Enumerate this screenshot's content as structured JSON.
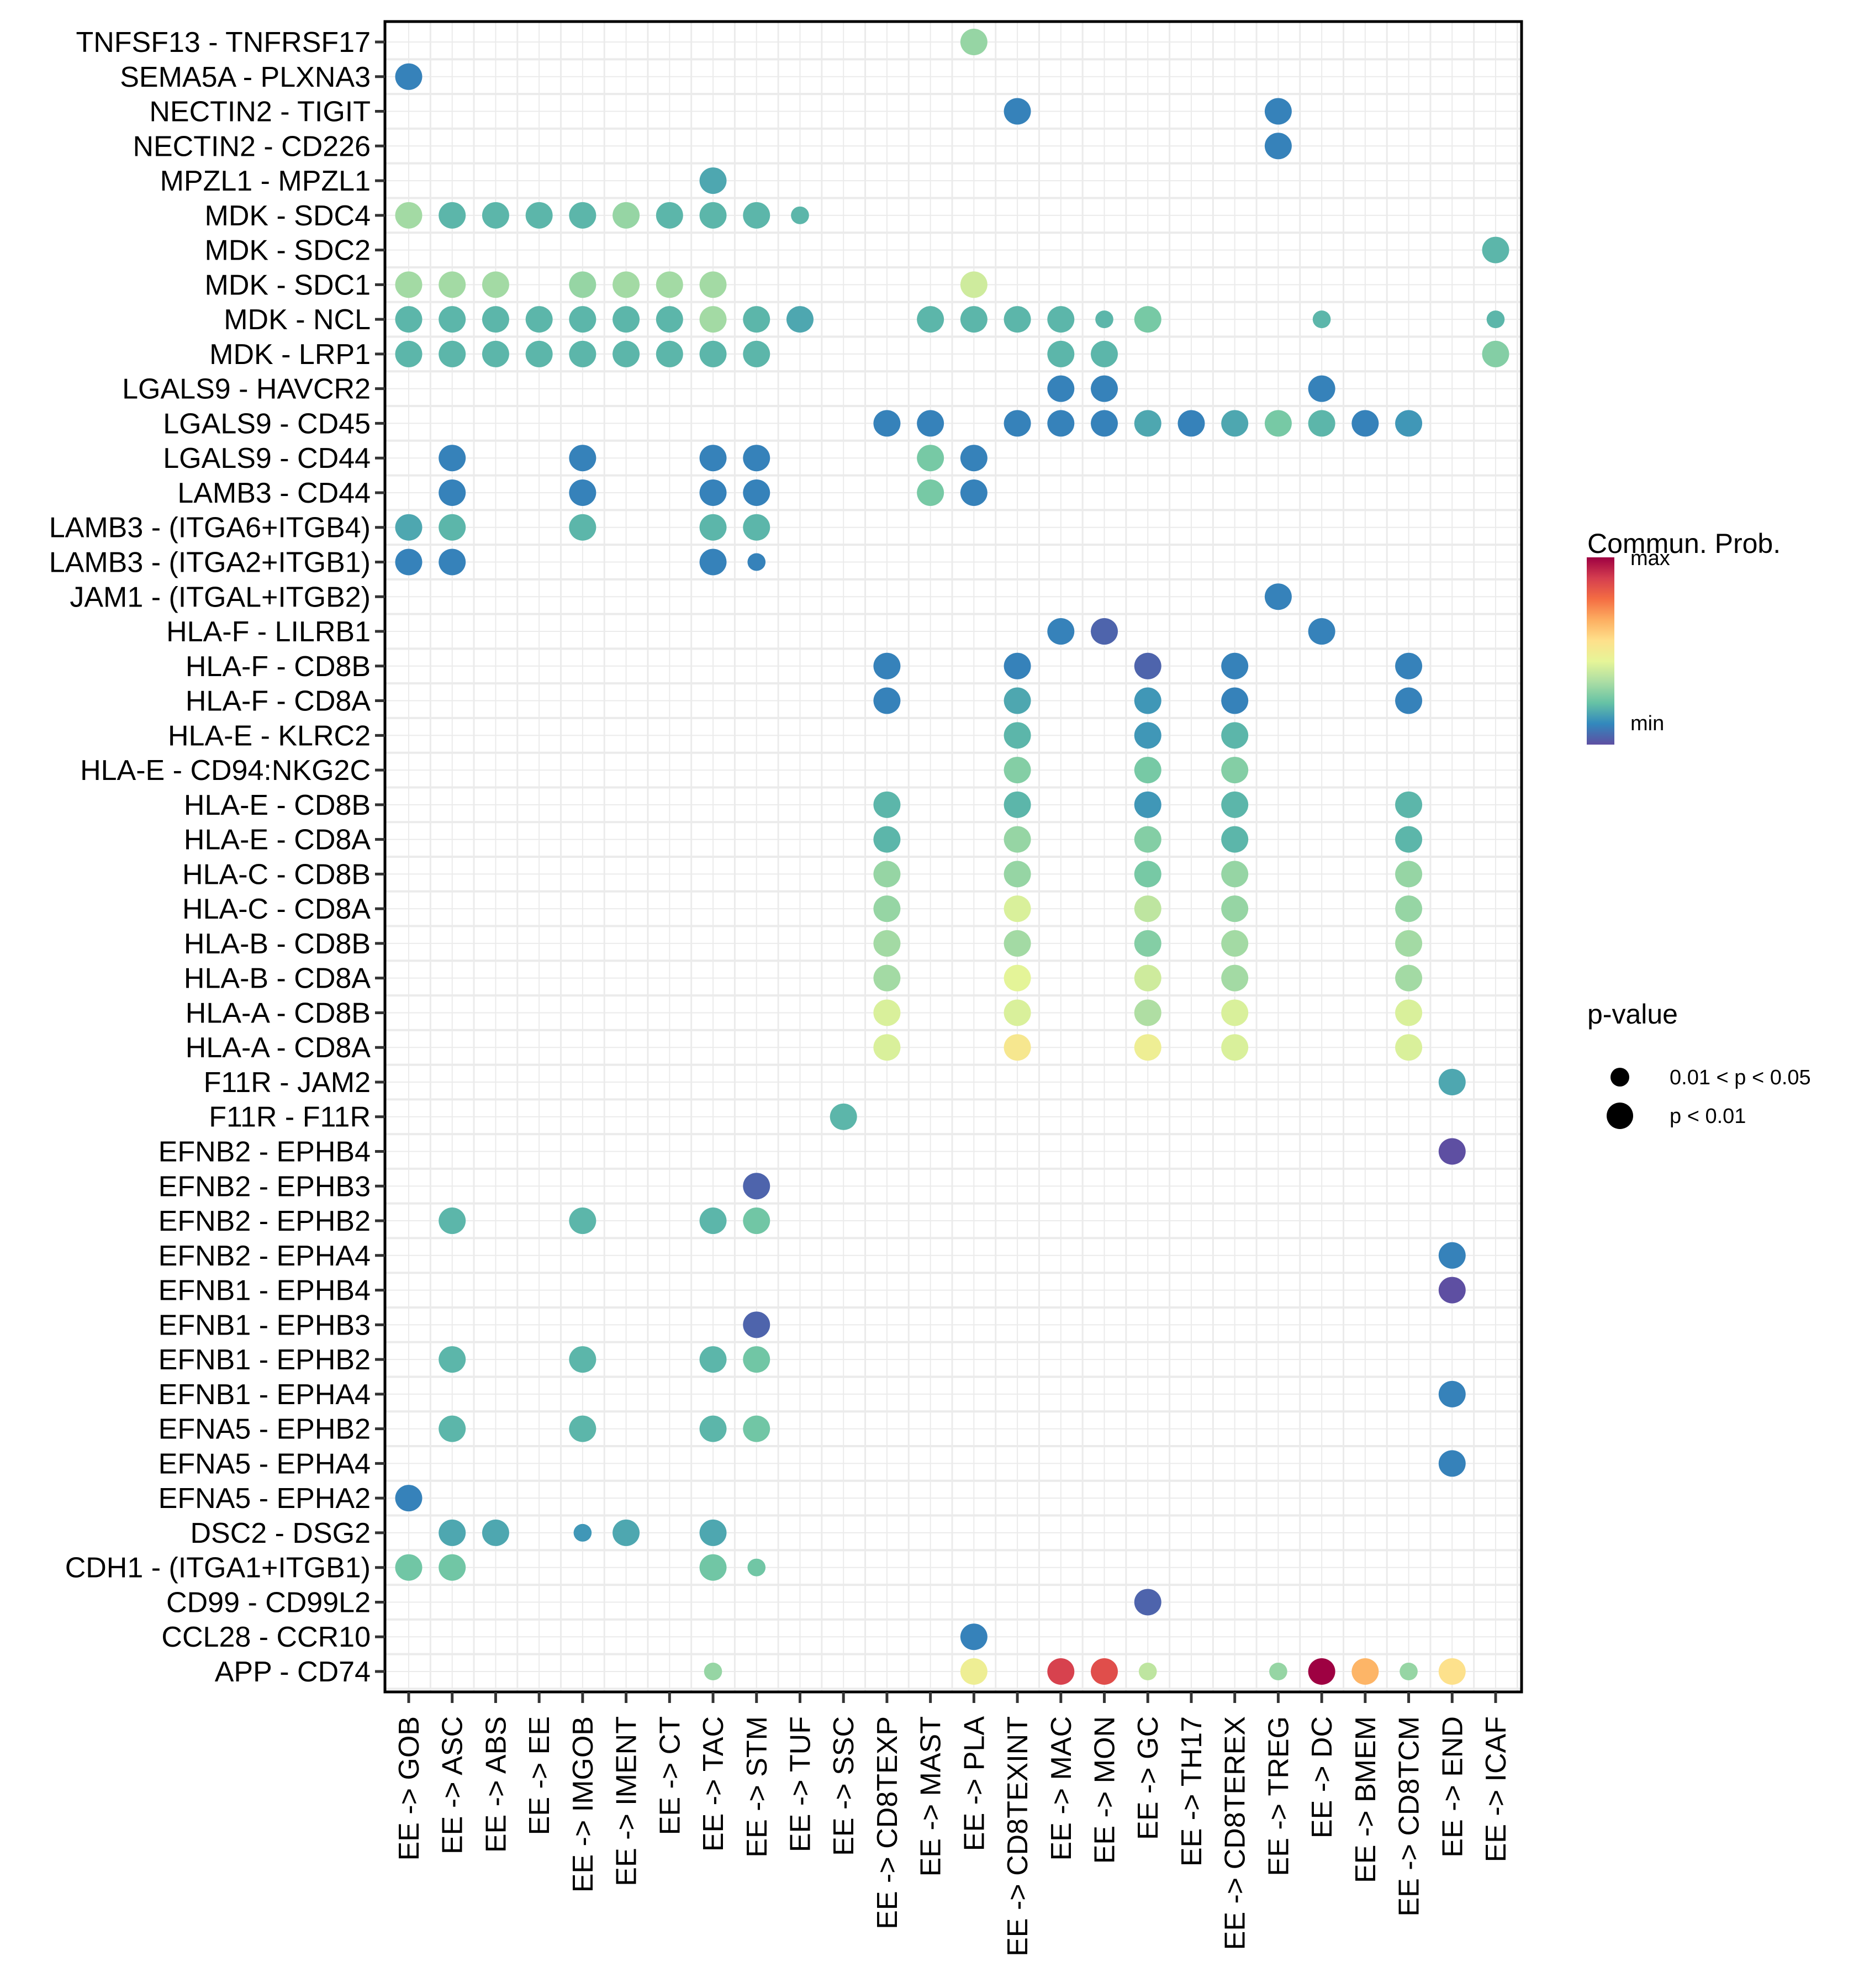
{
  "chart_data": {
    "type": "scatter",
    "subtype": "dot-matrix (bubble)",
    "title": "",
    "xlabel": "",
    "ylabel": "",
    "grid": true,
    "legend_placement": "right",
    "x_categories": [
      "EE -> GOB",
      "EE -> ASC",
      "EE -> ABS",
      "EE -> EE",
      "EE -> IMGOB",
      "EE -> IMENT",
      "EE -> CT",
      "EE -> TAC",
      "EE -> STM",
      "EE -> TUF",
      "EE -> SSC",
      "EE -> CD8TEXP",
      "EE -> MAST",
      "EE -> PLA",
      "EE -> CD8TEXINT",
      "EE -> MAC",
      "EE -> MON",
      "EE -> GC",
      "EE -> TH17",
      "EE -> CD8TEREX",
      "EE -> TREG",
      "EE -> DC",
      "EE -> BMEM",
      "EE -> CD8TCM",
      "EE -> END",
      "EE -> ICAF"
    ],
    "y_categories_top_to_bottom": [
      "TNFSF13 - TNFRSF17",
      "SEMA5A - PLXNA3",
      "NECTIN2 - TIGIT",
      "NECTIN2 - CD226",
      "MPZL1 - MPZL1",
      "MDK - SDC4",
      "MDK - SDC2",
      "MDK - SDC1",
      "MDK - NCL",
      "MDK - LRP1",
      "LGALS9 - HAVCR2",
      "LGALS9 - CD45",
      "LGALS9 - CD44",
      "LAMB3 - CD44",
      "LAMB3 - (ITGA6+ITGB4)",
      "LAMB3 - (ITGA2+ITGB1)",
      "JAM1 - (ITGAL+ITGB2)",
      "HLA-F - LILRB1",
      "HLA-F - CD8B",
      "HLA-F - CD8A",
      "HLA-E - KLRC2",
      "HLA-E - CD94:NKG2C",
      "HLA-E - CD8B",
      "HLA-E - CD8A",
      "HLA-C - CD8B",
      "HLA-C - CD8A",
      "HLA-B - CD8B",
      "HLA-B - CD8A",
      "HLA-A - CD8B",
      "HLA-A - CD8A",
      "F11R - JAM2",
      "F11R - F11R",
      "EFNB2 - EPHB4",
      "EFNB2 - EPHB3",
      "EFNB2 - EPHB2",
      "EFNB2 - EPHA4",
      "EFNB1 - EPHB4",
      "EFNB1 - EPHB3",
      "EFNB1 - EPHB2",
      "EFNB1 - EPHA4",
      "EFNA5 - EPHB2",
      "EFNA5 - EPHA4",
      "EFNA5 - EPHA2",
      "DSC2 - DSG2",
      "CDH1 - (ITGA1+ITGB1)",
      "CD99 - CD99L2",
      "CCL28 - CCR10",
      "APP - CD74"
    ],
    "points_note": "Each point: [x_index, y_index, communication_probability scaled 0(min)-1(max), pvalue_class]. pvalue_class 'S' = 0.01 < p < 0.05 (small dot), 'L' = p < 0.01 (large dot).",
    "points": [
      [
        13,
        0,
        0.3,
        "L"
      ],
      [
        0,
        1,
        0.1,
        "L"
      ],
      [
        14,
        2,
        0.1,
        "L"
      ],
      [
        20,
        2,
        0.1,
        "L"
      ],
      [
        20,
        3,
        0.1,
        "L"
      ],
      [
        7,
        4,
        0.17,
        "L"
      ],
      [
        0,
        5,
        0.32,
        "L"
      ],
      [
        1,
        5,
        0.2,
        "L"
      ],
      [
        2,
        5,
        0.2,
        "L"
      ],
      [
        3,
        5,
        0.2,
        "L"
      ],
      [
        4,
        5,
        0.2,
        "L"
      ],
      [
        5,
        5,
        0.3,
        "L"
      ],
      [
        6,
        5,
        0.2,
        "L"
      ],
      [
        7,
        5,
        0.2,
        "L"
      ],
      [
        8,
        5,
        0.2,
        "L"
      ],
      [
        9,
        5,
        0.2,
        "S"
      ],
      [
        25,
        6,
        0.2,
        "L"
      ],
      [
        0,
        7,
        0.32,
        "L"
      ],
      [
        1,
        7,
        0.32,
        "L"
      ],
      [
        2,
        7,
        0.32,
        "L"
      ],
      [
        4,
        7,
        0.3,
        "L"
      ],
      [
        5,
        7,
        0.32,
        "L"
      ],
      [
        6,
        7,
        0.32,
        "L"
      ],
      [
        7,
        7,
        0.32,
        "L"
      ],
      [
        13,
        7,
        0.4,
        "L"
      ],
      [
        0,
        8,
        0.2,
        "L"
      ],
      [
        1,
        8,
        0.2,
        "L"
      ],
      [
        2,
        8,
        0.2,
        "L"
      ],
      [
        3,
        8,
        0.2,
        "L"
      ],
      [
        4,
        8,
        0.2,
        "L"
      ],
      [
        5,
        8,
        0.2,
        "L"
      ],
      [
        6,
        8,
        0.2,
        "L"
      ],
      [
        7,
        8,
        0.32,
        "L"
      ],
      [
        8,
        8,
        0.2,
        "L"
      ],
      [
        9,
        8,
        0.17,
        "L"
      ],
      [
        12,
        8,
        0.2,
        "L"
      ],
      [
        13,
        8,
        0.2,
        "L"
      ],
      [
        14,
        8,
        0.2,
        "L"
      ],
      [
        15,
        8,
        0.2,
        "L"
      ],
      [
        16,
        8,
        0.2,
        "S"
      ],
      [
        17,
        8,
        0.25,
        "L"
      ],
      [
        21,
        8,
        0.2,
        "S"
      ],
      [
        25,
        8,
        0.2,
        "S"
      ],
      [
        0,
        9,
        0.2,
        "L"
      ],
      [
        1,
        9,
        0.2,
        "L"
      ],
      [
        2,
        9,
        0.2,
        "L"
      ],
      [
        3,
        9,
        0.2,
        "L"
      ],
      [
        4,
        9,
        0.2,
        "L"
      ],
      [
        5,
        9,
        0.2,
        "L"
      ],
      [
        6,
        9,
        0.2,
        "L"
      ],
      [
        7,
        9,
        0.2,
        "L"
      ],
      [
        8,
        9,
        0.2,
        "L"
      ],
      [
        15,
        9,
        0.2,
        "L"
      ],
      [
        16,
        9,
        0.2,
        "L"
      ],
      [
        25,
        9,
        0.27,
        "L"
      ],
      [
        15,
        10,
        0.1,
        "L"
      ],
      [
        16,
        10,
        0.1,
        "L"
      ],
      [
        21,
        10,
        0.1,
        "L"
      ],
      [
        11,
        11,
        0.1,
        "L"
      ],
      [
        12,
        11,
        0.1,
        "L"
      ],
      [
        14,
        11,
        0.1,
        "L"
      ],
      [
        15,
        11,
        0.1,
        "L"
      ],
      [
        16,
        11,
        0.1,
        "L"
      ],
      [
        17,
        11,
        0.17,
        "L"
      ],
      [
        18,
        11,
        0.1,
        "L"
      ],
      [
        19,
        11,
        0.17,
        "L"
      ],
      [
        20,
        11,
        0.25,
        "L"
      ],
      [
        21,
        11,
        0.2,
        "L"
      ],
      [
        22,
        11,
        0.1,
        "L"
      ],
      [
        23,
        11,
        0.14,
        "L"
      ],
      [
        1,
        12,
        0.1,
        "L"
      ],
      [
        4,
        12,
        0.1,
        "L"
      ],
      [
        7,
        12,
        0.1,
        "L"
      ],
      [
        8,
        12,
        0.1,
        "L"
      ],
      [
        12,
        12,
        0.25,
        "L"
      ],
      [
        13,
        12,
        0.1,
        "L"
      ],
      [
        1,
        13,
        0.1,
        "L"
      ],
      [
        4,
        13,
        0.1,
        "L"
      ],
      [
        7,
        13,
        0.1,
        "L"
      ],
      [
        8,
        13,
        0.1,
        "L"
      ],
      [
        12,
        13,
        0.25,
        "L"
      ],
      [
        13,
        13,
        0.1,
        "L"
      ],
      [
        0,
        14,
        0.17,
        "L"
      ],
      [
        1,
        14,
        0.2,
        "L"
      ],
      [
        4,
        14,
        0.2,
        "L"
      ],
      [
        7,
        14,
        0.2,
        "L"
      ],
      [
        8,
        14,
        0.2,
        "L"
      ],
      [
        0,
        15,
        0.1,
        "L"
      ],
      [
        1,
        15,
        0.1,
        "L"
      ],
      [
        7,
        15,
        0.1,
        "L"
      ],
      [
        8,
        15,
        0.1,
        "S"
      ],
      [
        20,
        16,
        0.1,
        "L"
      ],
      [
        15,
        17,
        0.1,
        "L"
      ],
      [
        16,
        17,
        0.04,
        "L"
      ],
      [
        21,
        17,
        0.1,
        "L"
      ],
      [
        11,
        18,
        0.1,
        "L"
      ],
      [
        14,
        18,
        0.1,
        "L"
      ],
      [
        17,
        18,
        0.04,
        "L"
      ],
      [
        19,
        18,
        0.1,
        "L"
      ],
      [
        23,
        18,
        0.1,
        "L"
      ],
      [
        11,
        19,
        0.1,
        "L"
      ],
      [
        14,
        19,
        0.17,
        "L"
      ],
      [
        17,
        19,
        0.14,
        "L"
      ],
      [
        19,
        19,
        0.1,
        "L"
      ],
      [
        23,
        19,
        0.1,
        "L"
      ],
      [
        14,
        20,
        0.2,
        "L"
      ],
      [
        17,
        20,
        0.14,
        "L"
      ],
      [
        19,
        20,
        0.2,
        "L"
      ],
      [
        14,
        21,
        0.27,
        "L"
      ],
      [
        17,
        21,
        0.25,
        "L"
      ],
      [
        19,
        21,
        0.27,
        "L"
      ],
      [
        11,
        22,
        0.2,
        "L"
      ],
      [
        14,
        22,
        0.2,
        "L"
      ],
      [
        17,
        22,
        0.14,
        "L"
      ],
      [
        19,
        22,
        0.2,
        "L"
      ],
      [
        23,
        22,
        0.2,
        "L"
      ],
      [
        11,
        23,
        0.2,
        "L"
      ],
      [
        14,
        23,
        0.3,
        "L"
      ],
      [
        17,
        23,
        0.27,
        "L"
      ],
      [
        19,
        23,
        0.2,
        "L"
      ],
      [
        23,
        23,
        0.2,
        "L"
      ],
      [
        11,
        24,
        0.3,
        "L"
      ],
      [
        14,
        24,
        0.3,
        "L"
      ],
      [
        17,
        24,
        0.25,
        "L"
      ],
      [
        19,
        24,
        0.3,
        "L"
      ],
      [
        23,
        24,
        0.3,
        "L"
      ],
      [
        11,
        25,
        0.3,
        "L"
      ],
      [
        14,
        25,
        0.42,
        "L"
      ],
      [
        17,
        25,
        0.37,
        "L"
      ],
      [
        19,
        25,
        0.3,
        "L"
      ],
      [
        23,
        25,
        0.3,
        "L"
      ],
      [
        11,
        26,
        0.32,
        "L"
      ],
      [
        14,
        26,
        0.32,
        "L"
      ],
      [
        17,
        26,
        0.27,
        "L"
      ],
      [
        19,
        26,
        0.32,
        "L"
      ],
      [
        23,
        26,
        0.32,
        "L"
      ],
      [
        11,
        27,
        0.32,
        "L"
      ],
      [
        14,
        27,
        0.44,
        "L"
      ],
      [
        17,
        27,
        0.4,
        "L"
      ],
      [
        19,
        27,
        0.32,
        "L"
      ],
      [
        23,
        27,
        0.32,
        "L"
      ],
      [
        11,
        28,
        0.42,
        "L"
      ],
      [
        14,
        28,
        0.42,
        "L"
      ],
      [
        17,
        28,
        0.34,
        "L"
      ],
      [
        19,
        28,
        0.42,
        "L"
      ],
      [
        23,
        28,
        0.42,
        "L"
      ],
      [
        11,
        29,
        0.42,
        "L"
      ],
      [
        14,
        29,
        0.52,
        "L"
      ],
      [
        17,
        29,
        0.48,
        "L"
      ],
      [
        19,
        29,
        0.42,
        "L"
      ],
      [
        23,
        29,
        0.42,
        "L"
      ],
      [
        24,
        30,
        0.17,
        "L"
      ],
      [
        10,
        31,
        0.2,
        "L"
      ],
      [
        24,
        32,
        0.0,
        "L"
      ],
      [
        8,
        33,
        0.04,
        "L"
      ],
      [
        1,
        34,
        0.2,
        "L"
      ],
      [
        4,
        34,
        0.2,
        "L"
      ],
      [
        7,
        34,
        0.2,
        "L"
      ],
      [
        8,
        34,
        0.24,
        "L"
      ],
      [
        24,
        35,
        0.1,
        "L"
      ],
      [
        24,
        36,
        0.0,
        "L"
      ],
      [
        8,
        37,
        0.04,
        "L"
      ],
      [
        1,
        38,
        0.2,
        "L"
      ],
      [
        4,
        38,
        0.2,
        "L"
      ],
      [
        7,
        38,
        0.2,
        "L"
      ],
      [
        8,
        38,
        0.24,
        "L"
      ],
      [
        24,
        39,
        0.1,
        "L"
      ],
      [
        1,
        40,
        0.2,
        "L"
      ],
      [
        4,
        40,
        0.2,
        "L"
      ],
      [
        7,
        40,
        0.2,
        "L"
      ],
      [
        8,
        40,
        0.24,
        "L"
      ],
      [
        24,
        41,
        0.1,
        "L"
      ],
      [
        0,
        42,
        0.1,
        "L"
      ],
      [
        1,
        43,
        0.17,
        "L"
      ],
      [
        2,
        43,
        0.17,
        "L"
      ],
      [
        4,
        43,
        0.14,
        "S"
      ],
      [
        5,
        43,
        0.17,
        "L"
      ],
      [
        7,
        43,
        0.17,
        "L"
      ],
      [
        0,
        44,
        0.24,
        "L"
      ],
      [
        1,
        44,
        0.24,
        "L"
      ],
      [
        7,
        44,
        0.24,
        "L"
      ],
      [
        8,
        44,
        0.24,
        "S"
      ],
      [
        17,
        45,
        0.04,
        "L"
      ],
      [
        13,
        46,
        0.1,
        "L"
      ],
      [
        7,
        47,
        0.3,
        "S"
      ],
      [
        13,
        47,
        0.48,
        "L"
      ],
      [
        15,
        47,
        0.88,
        "L"
      ],
      [
        16,
        47,
        0.85,
        "L"
      ],
      [
        17,
        47,
        0.37,
        "S"
      ],
      [
        20,
        47,
        0.3,
        "S"
      ],
      [
        21,
        47,
        1.0,
        "L"
      ],
      [
        22,
        47,
        0.65,
        "L"
      ],
      [
        23,
        47,
        0.3,
        "S"
      ],
      [
        24,
        47,
        0.55,
        "L"
      ]
    ],
    "colorbar": {
      "title": "Commun. Prob.",
      "max_label": "max",
      "min_label": "min",
      "palette": "Spectral (reversed: min=purple/blue, max=dark red)",
      "stops": [
        "#5E4FA2",
        "#3288BD",
        "#66C2A5",
        "#ABDDA4",
        "#E6F598",
        "#FEE08B",
        "#FDAE61",
        "#F46D43",
        "#D53E4F",
        "#9E0142"
      ]
    },
    "size_legend": {
      "title": "p-value",
      "items": [
        {
          "label": "0.01 < p < 0.05",
          "class": "S"
        },
        {
          "label": "p < 0.01",
          "class": "L"
        }
      ]
    }
  }
}
